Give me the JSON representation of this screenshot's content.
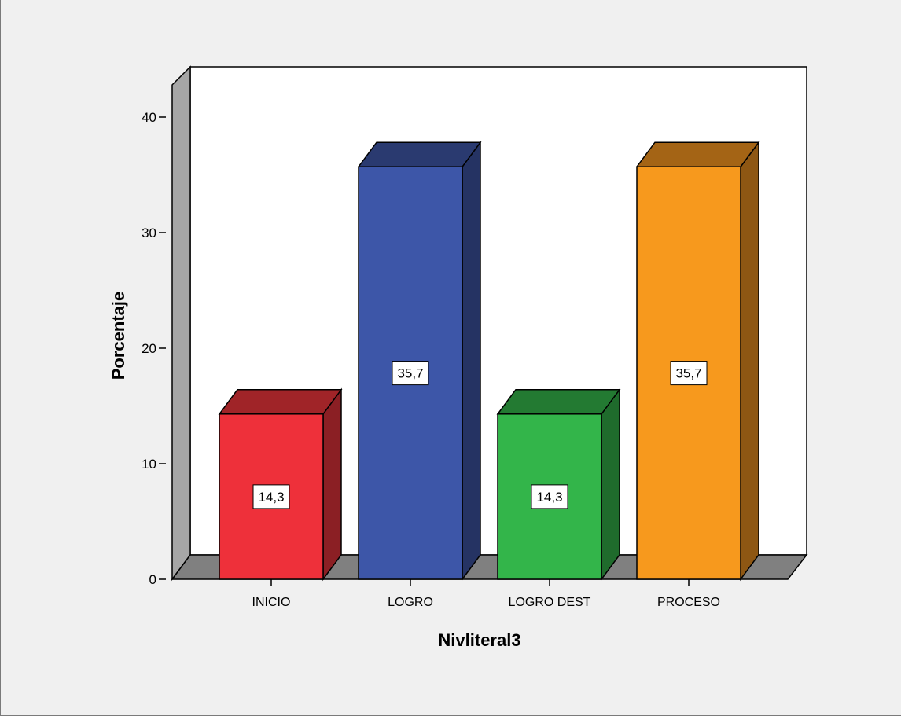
{
  "chart_data": {
    "type": "bar",
    "style": "3d",
    "categories": [
      "INICIO",
      "LOGRO",
      "LOGRO DEST",
      "PROCESO"
    ],
    "values": [
      14.3,
      35.7,
      14.3,
      35.7
    ],
    "data_labels": [
      "14,3",
      "35,7",
      "14,3",
      "35,7"
    ],
    "xlabel": "Nivliteral3",
    "ylabel": "Porcentaje",
    "ylim": [
      0,
      40
    ],
    "yticks": [
      0,
      10,
      20,
      30,
      40
    ],
    "ytick_labels": [
      "0",
      "10",
      "20",
      "30",
      "40"
    ],
    "grid": false,
    "legend": "none",
    "colors": {
      "bars_front": [
        "#ee303a",
        "#3d56a8",
        "#33b54a",
        "#f7991d"
      ],
      "bars_side": [
        "#8b1f24",
        "#253363",
        "#1f6b2c",
        "#8e5713"
      ],
      "bars_top": [
        "#a02428",
        "#2a3a70",
        "#237a32",
        "#a46415"
      ],
      "floor": "#808080",
      "left_wall": "#a6a6a6",
      "plot_bg": "#ffffff",
      "page_bg": "#f0f0f0"
    }
  }
}
